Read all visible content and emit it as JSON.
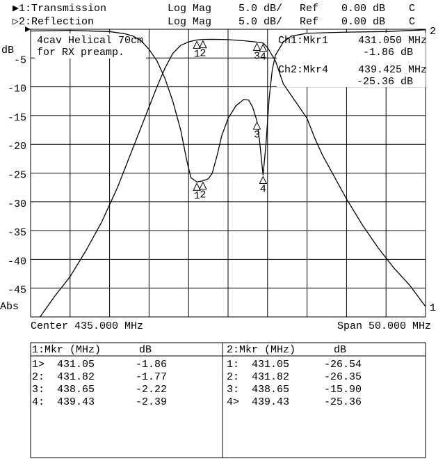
{
  "header": {
    "rows": [
      [
        "▶1:Transmission",
        "Log Mag",
        "5.0 dB/",
        "Ref",
        "0.00 dB",
        "C"
      ],
      [
        "▷2:Reflection",
        "Log Mag",
        "5.0 dB/",
        "Ref",
        "0.00 dB",
        "C"
      ]
    ]
  },
  "chart_data": {
    "type": "line",
    "annotation": [
      "4cav Helical 70cm",
      "for RX preamp."
    ],
    "readouts": [
      [
        "Ch1:Mkr1",
        "431.050 MHz",
        "-1.86 dB"
      ],
      [
        "Ch2:Mkr4",
        "439.425 MHz",
        "-25.36 dB"
      ]
    ],
    "y_label": "dB",
    "y_bottom_label": "Abs",
    "x_left_label": "Center 435.000 MHz",
    "x_right_label": "Span 50.000 MHz",
    "xlim": [
      410,
      460
    ],
    "ylim": [
      -50,
      0
    ],
    "yticks": [
      -45,
      -40,
      -35,
      -30,
      -25,
      -20,
      -15,
      -10,
      -5
    ],
    "grid": true,
    "series": [
      {
        "name": "1",
        "color": "#000000",
        "x": [
          411.2,
          413,
          415,
          417,
          419,
          420,
          421,
          422,
          423,
          424,
          425,
          426,
          427,
          428,
          429,
          430,
          431.05,
          431.82,
          433,
          435,
          437,
          438.65,
          439.43,
          440,
          441,
          442,
          443,
          444,
          445,
          446,
          447,
          448,
          449,
          450,
          452,
          454,
          456,
          458,
          460
        ],
        "values": [
          -50,
          -46.5,
          -43,
          -38.5,
          -33.5,
          -30.5,
          -27.5,
          -24,
          -20.5,
          -17,
          -13.5,
          -10,
          -6.8,
          -4.2,
          -2.8,
          -2.2,
          -1.86,
          -1.77,
          -1.75,
          -1.8,
          -2.0,
          -2.22,
          -2.39,
          -3.2,
          -5.5,
          -9.5,
          -11.5,
          -13.5,
          -15.5,
          -19,
          -22,
          -24.5,
          -27,
          -29.5,
          -34,
          -38,
          -41.5,
          -44.5,
          -48.2
        ],
        "markers": {
          "labels": [
            "1",
            "2",
            "3",
            "4"
          ],
          "x": [
            431.05,
            431.82,
            438.65,
            439.43
          ],
          "values": [
            -1.86,
            -1.77,
            -2.22,
            -2.39
          ]
        }
      },
      {
        "name": "2",
        "color": "#000000",
        "x": [
          410,
          415,
          420,
          422,
          423,
          424,
          425,
          426,
          427,
          428,
          429,
          429.8,
          430.3,
          431.05,
          431.82,
          432.5,
          433,
          433.6,
          434.2,
          435,
          436,
          437,
          437.6,
          438.1,
          438.65,
          439,
          439.43,
          439.8,
          440.2,
          440.6,
          441,
          442,
          443,
          445,
          450,
          455,
          460
        ],
        "values": [
          -0.3,
          -0.2,
          -0.4,
          -0.8,
          -1.2,
          -2,
          -3.5,
          -5.5,
          -8.5,
          -12.5,
          -17.5,
          -23,
          -25.8,
          -26.54,
          -26.35,
          -26,
          -25,
          -22,
          -18.5,
          -15.5,
          -13.3,
          -12.2,
          -12.3,
          -13.5,
          -15.9,
          -19.5,
          -25.36,
          -20,
          -12,
          -7,
          -4.5,
          -2.2,
          -1.2,
          -0.7,
          -0.5,
          -0.4,
          -0.1
        ],
        "markers": {
          "labels": [
            "1",
            "2",
            "3",
            "4"
          ],
          "x": [
            431.05,
            431.82,
            438.65,
            439.43
          ],
          "values": [
            -26.54,
            -26.35,
            -15.9,
            -25.36
          ]
        }
      }
    ]
  },
  "tables": [
    {
      "header": [
        "1:Mkr (MHz)",
        "dB"
      ],
      "rows": [
        [
          "1>",
          "431.05",
          "-1.86"
        ],
        [
          "2:",
          "431.82",
          "-1.77"
        ],
        [
          "3:",
          "438.65",
          "-2.22"
        ],
        [
          "4:",
          "439.43",
          "-2.39"
        ]
      ]
    },
    {
      "header": [
        "2:Mkr (MHz)",
        "dB"
      ],
      "rows": [
        [
          "1:",
          "431.05",
          "-26.54"
        ],
        [
          "2:",
          "431.82",
          "-26.35"
        ],
        [
          "3:",
          "438.65",
          "-15.90"
        ],
        [
          "4>",
          "439.43",
          "-25.36"
        ]
      ]
    }
  ]
}
